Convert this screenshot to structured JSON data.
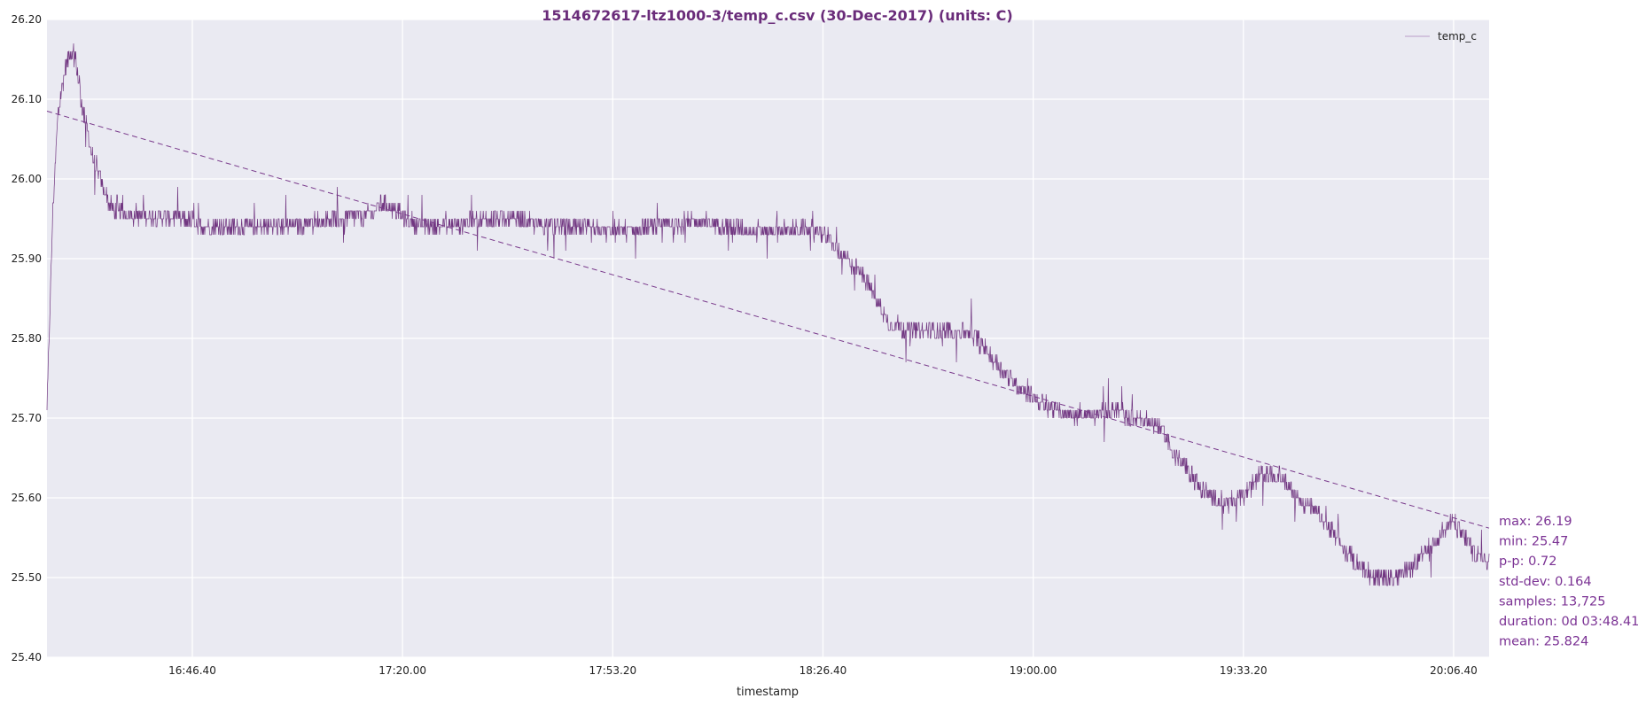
{
  "chart_data": {
    "type": "line",
    "title": "1514672617-ltz1000-3/temp_c.csv (30-Dec-2017) (units: C)",
    "xlabel": "timestamp",
    "ylabel": "",
    "x_ticks": [
      "16:46.40",
      "17:20.00",
      "17:53.20",
      "18:26.40",
      "19:00.00",
      "19:33.20",
      "20:06.40"
    ],
    "y_ticks": [
      "25.40",
      "25.50",
      "25.60",
      "25.70",
      "25.80",
      "25.90",
      "26.00",
      "26.10",
      "26.20"
    ],
    "ylim": [
      25.4,
      26.2
    ],
    "xlim": [
      "16:23.37",
      "20:12.18"
    ],
    "grid": true,
    "legend": {
      "placement": "top-right",
      "entries": [
        "temp_c"
      ]
    },
    "series": [
      {
        "name": "temp_c",
        "color": "#6a2c7a",
        "points": [
          [
            "16:23.37",
            25.71
          ],
          [
            "16:24.30",
            25.95
          ],
          [
            "16:25.20",
            26.08
          ],
          [
            "16:26.30",
            26.14
          ],
          [
            "16:27.20",
            26.16
          ],
          [
            "16:28.10",
            26.15
          ],
          [
            "16:29.00",
            26.1
          ],
          [
            "16:30.00",
            26.06
          ],
          [
            "16:31.00",
            26.02
          ],
          [
            "16:32.30",
            25.99
          ],
          [
            "16:34.00",
            25.96
          ],
          [
            "16:36.00",
            25.955
          ],
          [
            "16:40.00",
            25.955
          ],
          [
            "16:45.00",
            25.95
          ],
          [
            "16:50.00",
            25.94
          ],
          [
            "16:55.00",
            25.94
          ],
          [
            "17:00.00",
            25.94
          ],
          [
            "17:05.00",
            25.945
          ],
          [
            "17:10.00",
            25.95
          ],
          [
            "17:15.00",
            25.955
          ],
          [
            "17:17.00",
            25.97
          ],
          [
            "17:19.00",
            25.96
          ],
          [
            "17:21.00",
            25.945
          ],
          [
            "17:25.00",
            25.94
          ],
          [
            "17:30.00",
            25.945
          ],
          [
            "17:35.00",
            25.95
          ],
          [
            "17:40.00",
            25.945
          ],
          [
            "17:45.00",
            25.94
          ],
          [
            "17:50.00",
            25.935
          ],
          [
            "17:55.00",
            25.935
          ],
          [
            "18:00.00",
            25.94
          ],
          [
            "18:05.00",
            25.945
          ],
          [
            "18:10.00",
            25.945
          ],
          [
            "18:15.00",
            25.935
          ],
          [
            "18:20.00",
            25.935
          ],
          [
            "18:25.00",
            25.935
          ],
          [
            "18:27.00",
            25.93
          ],
          [
            "18:29.00",
            25.91
          ],
          [
            "18:31.00",
            25.895
          ],
          [
            "18:33.00",
            25.88
          ],
          [
            "18:35.00",
            25.85
          ],
          [
            "18:37.00",
            25.82
          ],
          [
            "18:40.00",
            25.81
          ],
          [
            "18:45.00",
            25.81
          ],
          [
            "18:50.00",
            25.81
          ],
          [
            "18:52.00",
            25.79
          ],
          [
            "18:55.00",
            25.76
          ],
          [
            "18:58.00",
            25.74
          ],
          [
            "19:01.00",
            25.72
          ],
          [
            "19:05.00",
            25.705
          ],
          [
            "19:10.00",
            25.705
          ],
          [
            "19:13.00",
            25.71
          ],
          [
            "19:16.00",
            25.7
          ],
          [
            "19:20.00",
            25.69
          ],
          [
            "19:22.00",
            25.66
          ],
          [
            "19:25.00",
            25.63
          ],
          [
            "19:28.00",
            25.6
          ],
          [
            "19:31.00",
            25.595
          ],
          [
            "19:33.20",
            25.6
          ],
          [
            "19:36.00",
            25.63
          ],
          [
            "19:39.00",
            25.63
          ],
          [
            "19:42.00",
            25.6
          ],
          [
            "19:45.00",
            25.58
          ],
          [
            "19:48.00",
            25.55
          ],
          [
            "19:51.00",
            25.52
          ],
          [
            "19:54.00",
            25.5
          ],
          [
            "19:58.00",
            25.5
          ],
          [
            "20:01.00",
            25.52
          ],
          [
            "20:04.00",
            25.55
          ],
          [
            "20:06.40",
            25.57
          ],
          [
            "20:08.30",
            25.55
          ],
          [
            "20:10.00",
            25.53
          ],
          [
            "20:12.18",
            25.52
          ]
        ],
        "noise_amplitude": 0.022
      },
      {
        "name": "",
        "style": "dashed trend",
        "color": "#7a3b8c",
        "points": [
          [
            "16:23.37",
            26.085
          ],
          [
            "20:12.18",
            25.562
          ]
        ]
      }
    ],
    "stats": [
      "max: 26.19",
      "min: 25.47",
      "p-p: 0.72",
      "std-dev: 0.164",
      "samples: 13,725",
      "duration: 0d 03:48.41",
      "mean: 25.824"
    ]
  },
  "colors": {
    "plot_background": "#eaeaf2",
    "grid": "#ffffff",
    "accent": "#6a2c7a",
    "stats_text": "#7b3294"
  }
}
